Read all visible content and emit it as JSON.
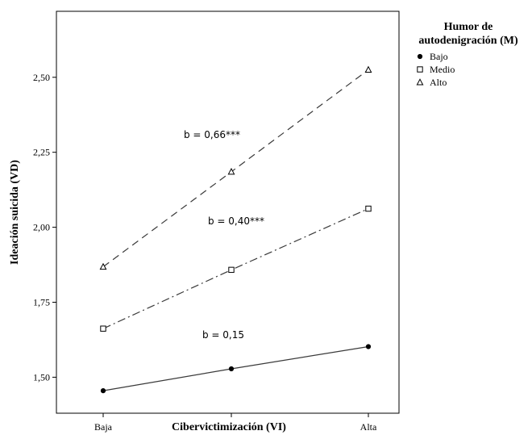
{
  "chart_data": {
    "type": "line",
    "xlabel": "Cibervictimización (VI)",
    "ylabel": "Ideación suicida (VD)",
    "categories": [
      "Baja",
      "",
      "Alta"
    ],
    "ylim": [
      1.38,
      2.72
    ],
    "yticks": [
      "1,50",
      "1,75",
      "2,00",
      "2,25",
      "2,50"
    ],
    "ytick_values": [
      1.5,
      1.75,
      2.0,
      2.25,
      2.5
    ],
    "grid": false,
    "legend": {
      "title": "Humor de autodenigración (M)",
      "title_lines": [
        "Humor de",
        "autodenigración (M)"
      ],
      "placement": "right"
    },
    "series": [
      {
        "name": "Bajo",
        "values": [
          1.455,
          1.528,
          1.602
        ],
        "marker": "circle",
        "dash": "solid"
      },
      {
        "name": "Medio",
        "values": [
          1.662,
          1.858,
          2.062
        ],
        "marker": "square",
        "dash": "dashdot"
      },
      {
        "name": "Alto",
        "values": [
          1.868,
          2.185,
          2.525
        ],
        "marker": "triangle",
        "dash": "dashed"
      }
    ],
    "annotations": [
      {
        "text": "b = 0,66***",
        "series": "Alto"
      },
      {
        "text": "b = 0,40***",
        "series": "Medio"
      },
      {
        "text": "b = 0,15",
        "series": "Bajo"
      }
    ]
  }
}
